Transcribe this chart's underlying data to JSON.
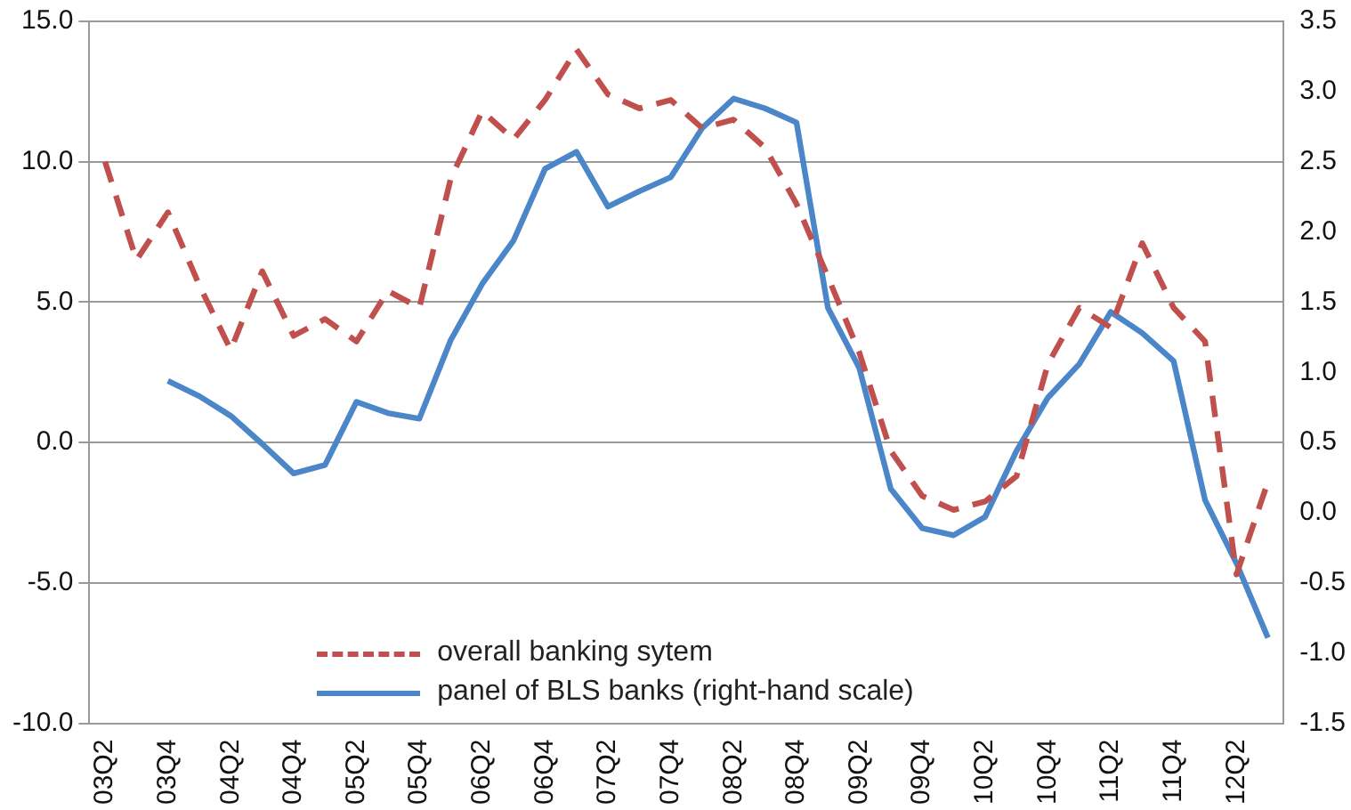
{
  "chart_data": {
    "type": "line",
    "categories": [
      "03Q2",
      null,
      "03Q4",
      null,
      "04Q2",
      null,
      "04Q4",
      null,
      "05Q2",
      null,
      "05Q4",
      null,
      "06Q2",
      null,
      "06Q4",
      null,
      "07Q2",
      null,
      "07Q4",
      null,
      "08Q2",
      null,
      "08Q4",
      null,
      "09Q2",
      null,
      "09Q4",
      null,
      "10Q2",
      null,
      "10Q4",
      null,
      "11Q2",
      null,
      "11Q4",
      null,
      "12Q2",
      null
    ],
    "series": [
      {
        "name": "overall banking sytem",
        "color": "#c0504d",
        "line_style": "dashed",
        "values": [
          10.0,
          6.5,
          8.2,
          5.6,
          3.3,
          6.1,
          3.8,
          4.4,
          3.6,
          5.4,
          4.8,
          9.4,
          11.8,
          10.8,
          12.2,
          14.0,
          12.4,
          11.9,
          12.2,
          11.2,
          11.5,
          10.5,
          8.5,
          5.9,
          3.2,
          -0.3,
          -1.9,
          -2.4,
          -2.1,
          -1.2,
          2.8,
          4.8,
          4.1,
          7.1,
          4.8,
          3.6,
          -4.7,
          -1.4
        ]
      },
      {
        "name": "panel of BLS banks (right-hand scale)",
        "color": "#4a86c8",
        "line_style": "solid",
        "axis": "y2",
        "values": [
          null,
          null,
          0.94,
          0.83,
          0.69,
          0.49,
          0.28,
          0.34,
          0.79,
          0.71,
          0.67,
          1.23,
          1.63,
          1.94,
          2.45,
          2.57,
          2.18,
          2.29,
          2.39,
          2.74,
          2.95,
          2.88,
          2.78,
          1.46,
          1.03,
          0.17,
          -0.11,
          -0.16,
          -0.03,
          0.44,
          0.82,
          1.06,
          1.43,
          1.28,
          1.08,
          0.09,
          -0.36,
          -0.89
        ]
      }
    ],
    "ylim": [
      -10,
      15
    ],
    "yticks": [
      {
        "value": -10,
        "label": "-10.0"
      },
      {
        "value": -5,
        "label": "-5.0"
      },
      {
        "value": 0,
        "label": "0.0"
      },
      {
        "value": 5,
        "label": "5.0"
      },
      {
        "value": 10,
        "label": "10.0"
      },
      {
        "value": 15,
        "label": "15.0"
      }
    ],
    "y2lim": [
      -1.5,
      3.5
    ],
    "y2ticks": [
      {
        "value": -1.5,
        "label": "-1.5"
      },
      {
        "value": -1,
        "label": "-1.0"
      },
      {
        "value": -0.5,
        "label": "-0.5"
      },
      {
        "value": 0,
        "label": "0.0"
      },
      {
        "value": 0.5,
        "label": "0.5"
      },
      {
        "value": 1,
        "label": "1.0"
      },
      {
        "value": 1.5,
        "label": "1.5"
      },
      {
        "value": 2,
        "label": "2.0"
      },
      {
        "value": 2.5,
        "label": "2.5"
      },
      {
        "value": 3,
        "label": "3.0"
      },
      {
        "value": 3.5,
        "label": "3.5"
      }
    ],
    "grid": "y",
    "legend": "bottom",
    "marker": "none"
  }
}
